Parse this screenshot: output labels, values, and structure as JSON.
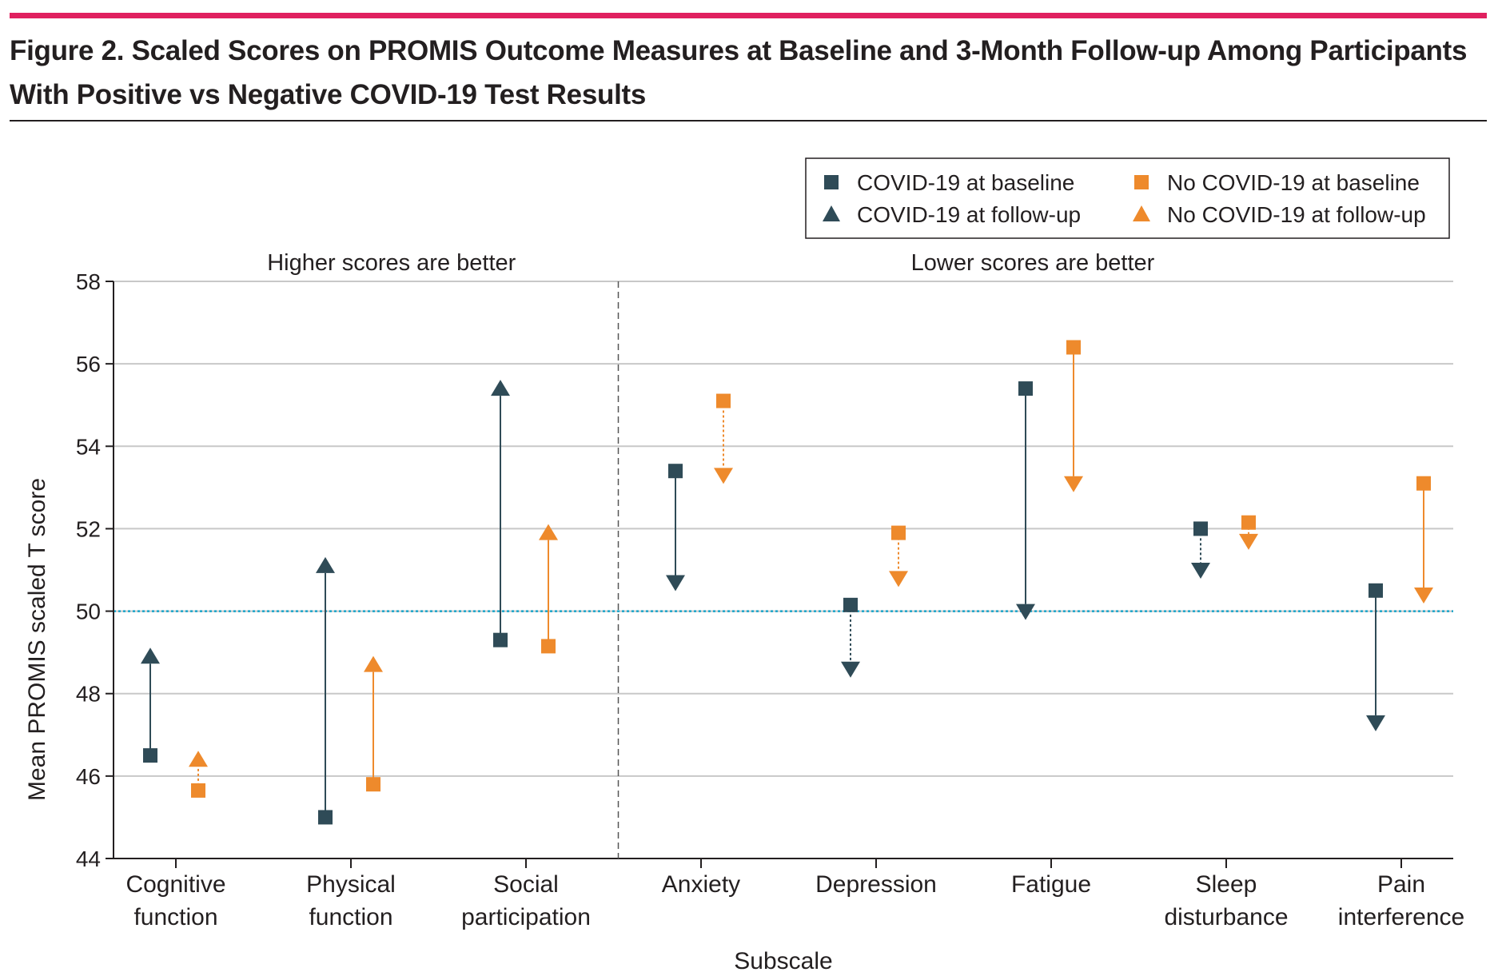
{
  "title": "Figure 2. Scaled Scores on PROMIS Outcome Measures at Baseline and 3-Month Follow-up Among Participants With Positive vs Negative COVID-19 Test Results",
  "colors": {
    "accent_bar": "#e0205f",
    "covid": "#2f4b57",
    "no_covid": "#ee8a2c",
    "reference_line": "#1aa3c8",
    "grid": "#c8c8c8",
    "divider": "#555555"
  },
  "chart_data": {
    "type": "scatter",
    "xlabel": "Subscale",
    "ylabel": "Mean PROMIS scaled T score",
    "ylim": [
      44,
      58
    ],
    "yticks": [
      44,
      46,
      48,
      50,
      52,
      54,
      56,
      58
    ],
    "reference_line": 50,
    "grid": true,
    "legend_position": "top-right",
    "region_labels": [
      {
        "text": "Higher scores are better",
        "categories": [
          "Cognitive function",
          "Physical function",
          "Social participation"
        ]
      },
      {
        "text": "Lower scores are better",
        "categories": [
          "Anxiety",
          "Depression",
          "Fatigue",
          "Sleep disturbance",
          "Pain interference"
        ]
      }
    ],
    "categories": [
      {
        "name": "Cognitive function",
        "lines": [
          "Cognitive",
          "function"
        ]
      },
      {
        "name": "Physical function",
        "lines": [
          "Physical",
          "function"
        ]
      },
      {
        "name": "Social participation",
        "lines": [
          "Social",
          "participation"
        ]
      },
      {
        "name": "Anxiety",
        "lines": [
          "Anxiety"
        ]
      },
      {
        "name": "Depression",
        "lines": [
          "Depression"
        ]
      },
      {
        "name": "Fatigue",
        "lines": [
          "Fatigue"
        ]
      },
      {
        "name": "Sleep disturbance",
        "lines": [
          "Sleep",
          "disturbance"
        ]
      },
      {
        "name": "Pain interference",
        "lines": [
          "Pain",
          "interference"
        ]
      }
    ],
    "legend": [
      {
        "label": "COVID-19 at baseline",
        "group": "covid",
        "marker": "square"
      },
      {
        "label": "COVID-19 at follow-up",
        "group": "covid",
        "marker": "triangle"
      },
      {
        "label": "No COVID-19 at baseline",
        "group": "no_covid",
        "marker": "square"
      },
      {
        "label": "No COVID-19 at follow-up",
        "group": "no_covid",
        "marker": "triangle"
      }
    ],
    "series": [
      {
        "name": "COVID-19",
        "group": "covid",
        "baseline": [
          46.5,
          45.0,
          49.3,
          53.4,
          50.15,
          55.4,
          52.0,
          50.5
        ],
        "follow_up": [
          48.9,
          51.1,
          55.4,
          50.7,
          48.6,
          50.0,
          51.0,
          47.3
        ],
        "significant": [
          true,
          true,
          true,
          true,
          false,
          true,
          false,
          true
        ]
      },
      {
        "name": "No COVID-19",
        "group": "no_covid",
        "baseline": [
          45.65,
          45.8,
          49.15,
          55.1,
          51.9,
          56.4,
          52.15,
          53.1
        ],
        "follow_up": [
          46.4,
          48.7,
          51.9,
          53.3,
          50.8,
          53.1,
          51.7,
          50.4
        ],
        "significant": [
          false,
          true,
          true,
          false,
          false,
          true,
          false,
          true
        ]
      }
    ]
  }
}
